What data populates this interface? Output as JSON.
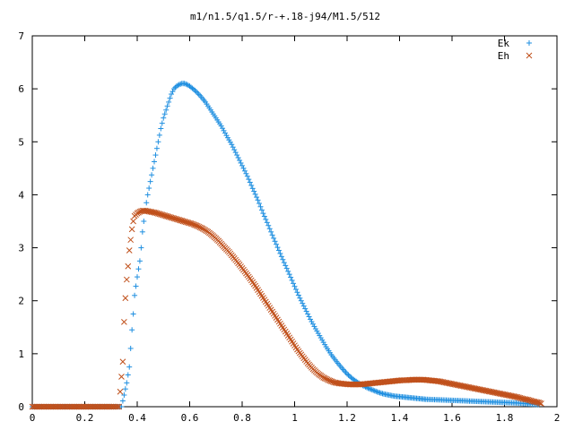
{
  "chart_data": {
    "type": "scatter",
    "title": "m1/n1.5/q1.5/r-+.18-j94/M1.5/512",
    "xlabel": "",
    "ylabel": "",
    "xlim": [
      0,
      2
    ],
    "ylim": [
      0,
      7
    ],
    "x_ticks": [
      0,
      0.2,
      0.4,
      0.6,
      0.8,
      1,
      1.2,
      1.4,
      1.6,
      1.8,
      2
    ],
    "x_tick_labels": [
      "0",
      "0.2",
      "0.4",
      "0.6",
      "0.8",
      "1",
      "1.2",
      "1.4",
      "1.6",
      "1.8",
      "2"
    ],
    "y_ticks": [
      0,
      1,
      2,
      3,
      4,
      5,
      6,
      7
    ],
    "y_tick_labels": [
      "0",
      "1",
      "2",
      "3",
      "4",
      "5",
      "6",
      "7"
    ],
    "grid": false,
    "legend_position": "top-right",
    "series": [
      {
        "name": "Ek",
        "marker": "+",
        "color": "#1f8fe0",
        "points": [
          [
            0.0,
            0
          ],
          [
            0.1,
            0
          ],
          [
            0.2,
            0
          ],
          [
            0.3,
            0
          ],
          [
            0.34,
            0
          ],
          [
            0.35,
            0.22
          ],
          [
            0.36,
            0.45
          ],
          [
            0.37,
            0.75
          ],
          [
            0.375,
            1.1
          ],
          [
            0.38,
            1.45
          ],
          [
            0.385,
            1.75
          ],
          [
            0.39,
            2.1
          ],
          [
            0.4,
            2.45
          ],
          [
            0.41,
            2.75
          ],
          [
            0.415,
            3.0
          ],
          [
            0.42,
            3.3
          ],
          [
            0.43,
            3.7
          ],
          [
            0.44,
            4.0
          ],
          [
            0.45,
            4.25
          ],
          [
            0.46,
            4.5
          ],
          [
            0.47,
            4.75
          ],
          [
            0.48,
            5.0
          ],
          [
            0.49,
            5.25
          ],
          [
            0.5,
            5.45
          ],
          [
            0.51,
            5.6
          ],
          [
            0.52,
            5.75
          ],
          [
            0.53,
            5.9
          ],
          [
            0.54,
            6.0
          ],
          [
            0.55,
            6.05
          ],
          [
            0.56,
            6.08
          ],
          [
            0.57,
            6.1
          ],
          [
            0.58,
            6.1
          ],
          [
            0.59,
            6.08
          ],
          [
            0.6,
            6.05
          ],
          [
            0.62,
            5.97
          ],
          [
            0.64,
            5.87
          ],
          [
            0.66,
            5.75
          ],
          [
            0.68,
            5.6
          ],
          [
            0.7,
            5.45
          ],
          [
            0.72,
            5.3
          ],
          [
            0.74,
            5.12
          ],
          [
            0.76,
            4.95
          ],
          [
            0.78,
            4.75
          ],
          [
            0.8,
            4.55
          ],
          [
            0.82,
            4.35
          ],
          [
            0.84,
            4.12
          ],
          [
            0.86,
            3.9
          ],
          [
            0.88,
            3.65
          ],
          [
            0.9,
            3.42
          ],
          [
            0.92,
            3.18
          ],
          [
            0.94,
            2.95
          ],
          [
            0.96,
            2.72
          ],
          [
            0.98,
            2.5
          ],
          [
            1.0,
            2.27
          ],
          [
            1.02,
            2.05
          ],
          [
            1.04,
            1.85
          ],
          [
            1.06,
            1.65
          ],
          [
            1.08,
            1.47
          ],
          [
            1.1,
            1.3
          ],
          [
            1.12,
            1.13
          ],
          [
            1.14,
            0.98
          ],
          [
            1.16,
            0.85
          ],
          [
            1.18,
            0.73
          ],
          [
            1.2,
            0.62
          ],
          [
            1.22,
            0.53
          ],
          [
            1.24,
            0.46
          ],
          [
            1.26,
            0.4
          ],
          [
            1.28,
            0.35
          ],
          [
            1.3,
            0.31
          ],
          [
            1.32,
            0.27
          ],
          [
            1.34,
            0.24
          ],
          [
            1.36,
            0.22
          ],
          [
            1.38,
            0.2
          ],
          [
            1.4,
            0.19
          ],
          [
            1.42,
            0.18
          ],
          [
            1.44,
            0.17
          ],
          [
            1.46,
            0.16
          ],
          [
            1.48,
            0.15
          ],
          [
            1.5,
            0.14
          ],
          [
            1.55,
            0.13
          ],
          [
            1.6,
            0.12
          ],
          [
            1.65,
            0.11
          ],
          [
            1.7,
            0.1
          ],
          [
            1.75,
            0.09
          ],
          [
            1.8,
            0.08
          ],
          [
            1.85,
            0.07
          ],
          [
            1.9,
            0.05
          ],
          [
            1.93,
            0.04
          ]
        ]
      },
      {
        "name": "Eh",
        "marker": "x",
        "color": "#c0501b",
        "points": [
          [
            0.0,
            0
          ],
          [
            0.1,
            0
          ],
          [
            0.2,
            0
          ],
          [
            0.3,
            0
          ],
          [
            0.33,
            0
          ],
          [
            0.345,
            0.85
          ],
          [
            0.35,
            1.6
          ],
          [
            0.355,
            2.05
          ],
          [
            0.36,
            2.4
          ],
          [
            0.365,
            2.65
          ],
          [
            0.37,
            2.95
          ],
          [
            0.375,
            3.15
          ],
          [
            0.38,
            3.35
          ],
          [
            0.385,
            3.5
          ],
          [
            0.39,
            3.6
          ],
          [
            0.4,
            3.65
          ],
          [
            0.41,
            3.68
          ],
          [
            0.42,
            3.7
          ],
          [
            0.43,
            3.7
          ],
          [
            0.45,
            3.68
          ],
          [
            0.47,
            3.66
          ],
          [
            0.49,
            3.63
          ],
          [
            0.51,
            3.6
          ],
          [
            0.53,
            3.57
          ],
          [
            0.55,
            3.54
          ],
          [
            0.57,
            3.51
          ],
          [
            0.59,
            3.48
          ],
          [
            0.61,
            3.45
          ],
          [
            0.63,
            3.41
          ],
          [
            0.65,
            3.36
          ],
          [
            0.67,
            3.3
          ],
          [
            0.69,
            3.22
          ],
          [
            0.71,
            3.13
          ],
          [
            0.73,
            3.02
          ],
          [
            0.75,
            2.92
          ],
          [
            0.77,
            2.8
          ],
          [
            0.79,
            2.68
          ],
          [
            0.81,
            2.55
          ],
          [
            0.83,
            2.42
          ],
          [
            0.85,
            2.28
          ],
          [
            0.87,
            2.13
          ],
          [
            0.89,
            1.98
          ],
          [
            0.91,
            1.83
          ],
          [
            0.93,
            1.68
          ],
          [
            0.95,
            1.53
          ],
          [
            0.97,
            1.38
          ],
          [
            0.99,
            1.23
          ],
          [
            1.01,
            1.08
          ],
          [
            1.03,
            0.95
          ],
          [
            1.05,
            0.82
          ],
          [
            1.07,
            0.71
          ],
          [
            1.09,
            0.62
          ],
          [
            1.11,
            0.55
          ],
          [
            1.13,
            0.5
          ],
          [
            1.15,
            0.46
          ],
          [
            1.17,
            0.44
          ],
          [
            1.19,
            0.43
          ],
          [
            1.21,
            0.42
          ],
          [
            1.23,
            0.42
          ],
          [
            1.25,
            0.42
          ],
          [
            1.27,
            0.43
          ],
          [
            1.29,
            0.44
          ],
          [
            1.31,
            0.45
          ],
          [
            1.33,
            0.46
          ],
          [
            1.35,
            0.47
          ],
          [
            1.37,
            0.48
          ],
          [
            1.39,
            0.49
          ],
          [
            1.41,
            0.5
          ],
          [
            1.43,
            0.5
          ],
          [
            1.45,
            0.51
          ],
          [
            1.47,
            0.51
          ],
          [
            1.49,
            0.51
          ],
          [
            1.51,
            0.5
          ],
          [
            1.53,
            0.49
          ],
          [
            1.55,
            0.48
          ],
          [
            1.57,
            0.46
          ],
          [
            1.59,
            0.44
          ],
          [
            1.61,
            0.42
          ],
          [
            1.63,
            0.4
          ],
          [
            1.65,
            0.38
          ],
          [
            1.67,
            0.36
          ],
          [
            1.69,
            0.34
          ],
          [
            1.71,
            0.32
          ],
          [
            1.73,
            0.3
          ],
          [
            1.75,
            0.28
          ],
          [
            1.77,
            0.26
          ],
          [
            1.79,
            0.24
          ],
          [
            1.81,
            0.22
          ],
          [
            1.83,
            0.2
          ],
          [
            1.85,
            0.18
          ],
          [
            1.87,
            0.15
          ],
          [
            1.89,
            0.13
          ],
          [
            1.91,
            0.1
          ],
          [
            1.93,
            0.08
          ],
          [
            1.94,
            0.06
          ]
        ]
      }
    ]
  }
}
